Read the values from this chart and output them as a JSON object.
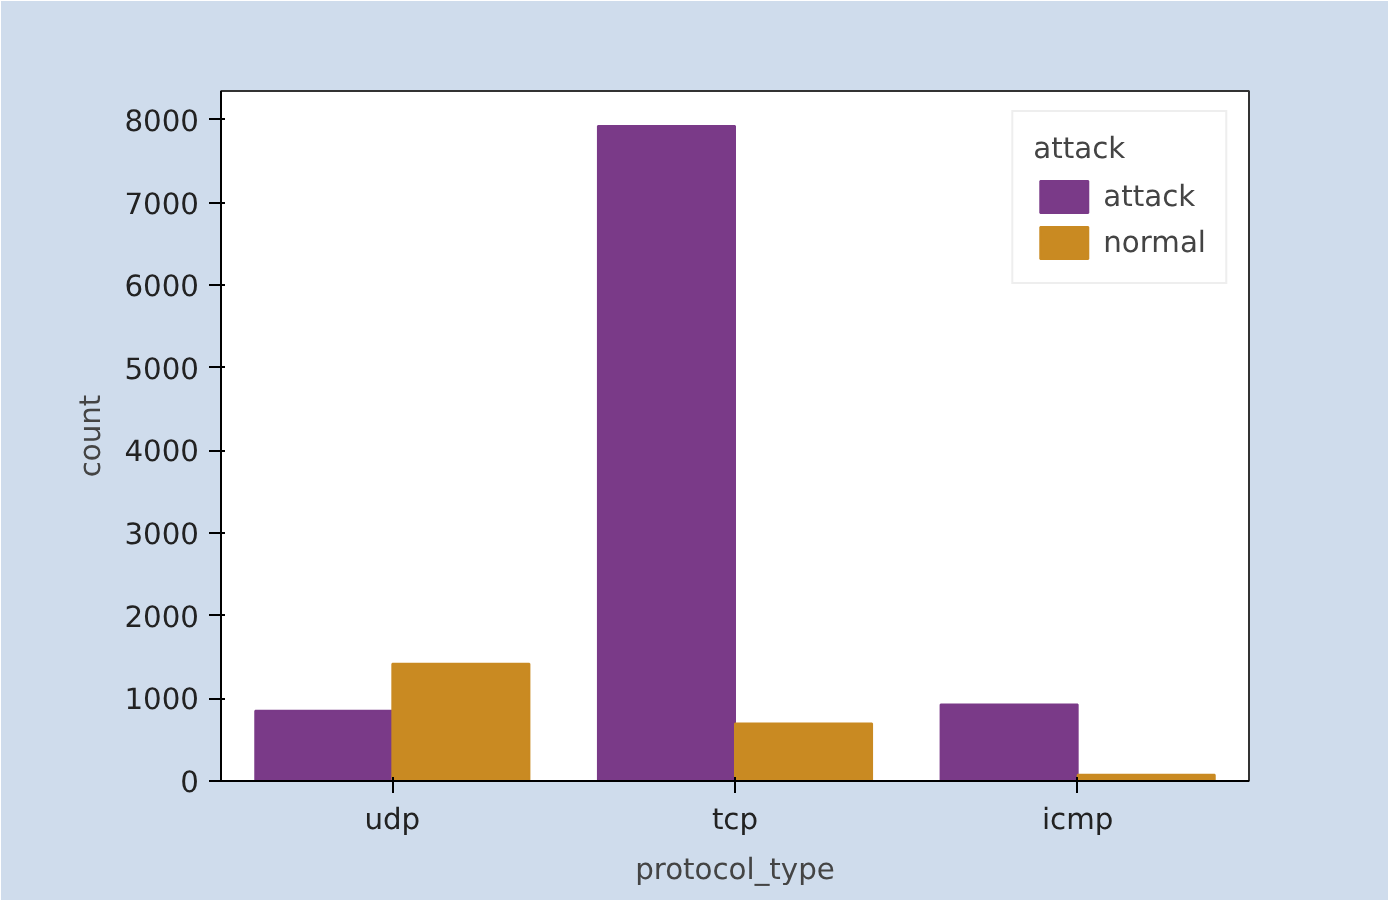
{
  "chart_data": {
    "type": "bar",
    "xlabel": "protocol_type",
    "ylabel": "count",
    "legend_title": "attack",
    "categories": [
      "udp",
      "tcp",
      "icmp"
    ],
    "series": [
      {
        "name": "attack",
        "color": "#7a3a88",
        "values": [
          850,
          7925,
          925
        ]
      },
      {
        "name": "normal",
        "color": "#c98a22",
        "values": [
          1420,
          695,
          75
        ]
      }
    ],
    "ylim": [
      0,
      8350
    ],
    "yticks": [
      0,
      1000,
      2000,
      3000,
      4000,
      5000,
      6000,
      7000,
      8000
    ],
    "grid": false,
    "legend": "top right"
  }
}
